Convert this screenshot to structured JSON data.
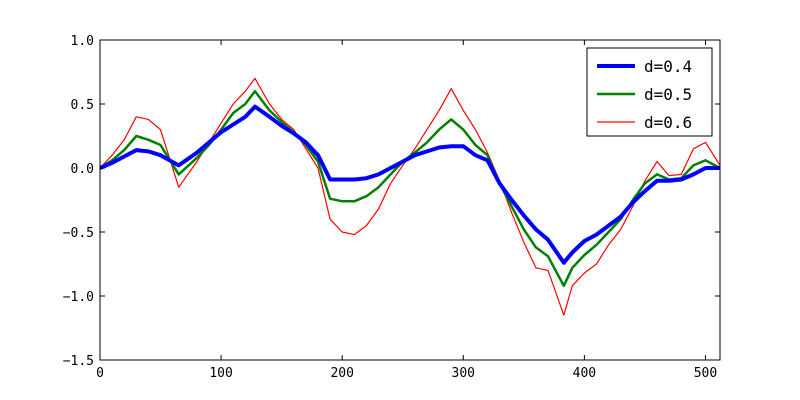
{
  "chart_data": {
    "type": "line",
    "xlim": [
      0,
      512
    ],
    "ylim": [
      -1.5,
      1.0
    ],
    "xticks": [
      0,
      100,
      200,
      300,
      400,
      500
    ],
    "yticks": [
      1.0,
      0.5,
      0.0,
      -0.5,
      -1.0,
      -1.5
    ],
    "xtick_labels": [
      "0",
      "100",
      "200",
      "300",
      "400",
      "500"
    ],
    "ytick_labels": [
      "1.0",
      "0.5",
      "0.0",
      "−0.5",
      "−1.0",
      "−1.5"
    ],
    "grid": false,
    "legend": "top-right",
    "series": [
      {
        "name": "d=0.4",
        "color": "#0000ff",
        "x": [
          0,
          10,
          20,
          30,
          40,
          50,
          65,
          80,
          90,
          100,
          110,
          120,
          128,
          140,
          150,
          160,
          170,
          180,
          190,
          200,
          210,
          220,
          230,
          240,
          250,
          260,
          270,
          280,
          290,
          300,
          310,
          320,
          330,
          340,
          350,
          360,
          370,
          383,
          390,
          400,
          410,
          420,
          430,
          440,
          450,
          460,
          470,
          480,
          490,
          500,
          512
        ],
        "y": [
          0.0,
          0.04,
          0.09,
          0.14,
          0.13,
          0.1,
          0.02,
          0.12,
          0.2,
          0.28,
          0.34,
          0.4,
          0.48,
          0.4,
          0.33,
          0.27,
          0.2,
          0.1,
          -0.09,
          -0.09,
          -0.09,
          -0.08,
          -0.05,
          0.0,
          0.05,
          0.1,
          0.13,
          0.16,
          0.17,
          0.17,
          0.1,
          0.06,
          -0.12,
          -0.25,
          -0.37,
          -0.48,
          -0.56,
          -0.74,
          -0.66,
          -0.57,
          -0.52,
          -0.45,
          -0.38,
          -0.27,
          -0.18,
          -0.1,
          -0.1,
          -0.09,
          -0.05,
          0.0,
          0.0
        ]
      },
      {
        "name": "d=0.5",
        "color": "#008000",
        "x": [
          0,
          10,
          20,
          30,
          40,
          50,
          65,
          80,
          90,
          100,
          110,
          120,
          128,
          140,
          150,
          160,
          170,
          180,
          190,
          200,
          210,
          220,
          230,
          240,
          250,
          260,
          270,
          280,
          290,
          300,
          310,
          320,
          330,
          340,
          350,
          360,
          370,
          383,
          390,
          400,
          410,
          420,
          430,
          440,
          450,
          460,
          470,
          480,
          490,
          500,
          512
        ],
        "y": [
          0.0,
          0.06,
          0.14,
          0.25,
          0.22,
          0.18,
          -0.05,
          0.08,
          0.18,
          0.3,
          0.43,
          0.5,
          0.6,
          0.45,
          0.36,
          0.28,
          0.18,
          0.05,
          -0.24,
          -0.26,
          -0.26,
          -0.22,
          -0.15,
          -0.05,
          0.05,
          0.12,
          0.2,
          0.3,
          0.38,
          0.3,
          0.18,
          0.1,
          -0.12,
          -0.3,
          -0.48,
          -0.62,
          -0.69,
          -0.92,
          -0.78,
          -0.68,
          -0.6,
          -0.5,
          -0.4,
          -0.25,
          -0.12,
          -0.05,
          -0.09,
          -0.08,
          0.02,
          0.06,
          0.0
        ]
      },
      {
        "name": "d=0.6",
        "color": "#ff0000",
        "x": [
          0,
          10,
          20,
          30,
          40,
          50,
          65,
          80,
          90,
          100,
          110,
          120,
          128,
          140,
          150,
          160,
          170,
          180,
          190,
          200,
          210,
          220,
          230,
          240,
          250,
          260,
          270,
          280,
          290,
          300,
          310,
          320,
          330,
          340,
          350,
          360,
          370,
          383,
          390,
          400,
          410,
          420,
          430,
          440,
          450,
          460,
          470,
          480,
          490,
          500,
          512
        ],
        "y": [
          0.0,
          0.1,
          0.22,
          0.4,
          0.38,
          0.3,
          -0.15,
          0.05,
          0.2,
          0.35,
          0.5,
          0.6,
          0.7,
          0.5,
          0.38,
          0.3,
          0.15,
          0.0,
          -0.4,
          -0.5,
          -0.52,
          -0.45,
          -0.32,
          -0.12,
          0.02,
          0.15,
          0.3,
          0.45,
          0.62,
          0.45,
          0.3,
          0.12,
          -0.1,
          -0.35,
          -0.58,
          -0.78,
          -0.8,
          -1.15,
          -0.92,
          -0.82,
          -0.75,
          -0.6,
          -0.48,
          -0.3,
          -0.1,
          0.05,
          -0.06,
          -0.05,
          0.15,
          0.2,
          0.02
        ]
      }
    ]
  }
}
